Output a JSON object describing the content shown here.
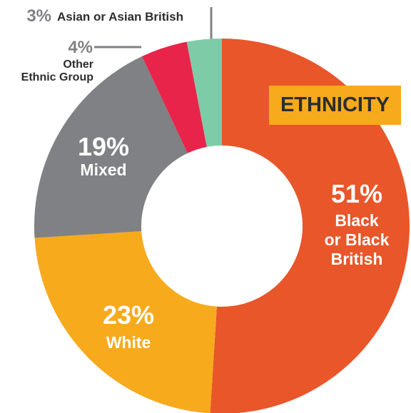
{
  "chart_data": {
    "type": "donut",
    "title": "ETHNICITY",
    "categories": [
      "Black\nor Black\nBritish",
      "White",
      "Mixed",
      "Other\nEthnic Group",
      "Asian or Asian British"
    ],
    "values": [
      51,
      23,
      19,
      4,
      3
    ],
    "value_labels": [
      "51%",
      "23%",
      "19%",
      "4%",
      "3%"
    ],
    "colors": [
      "#e8562a",
      "#f7aa1c",
      "#808184",
      "#e8244a",
      "#7ecba8"
    ]
  }
}
